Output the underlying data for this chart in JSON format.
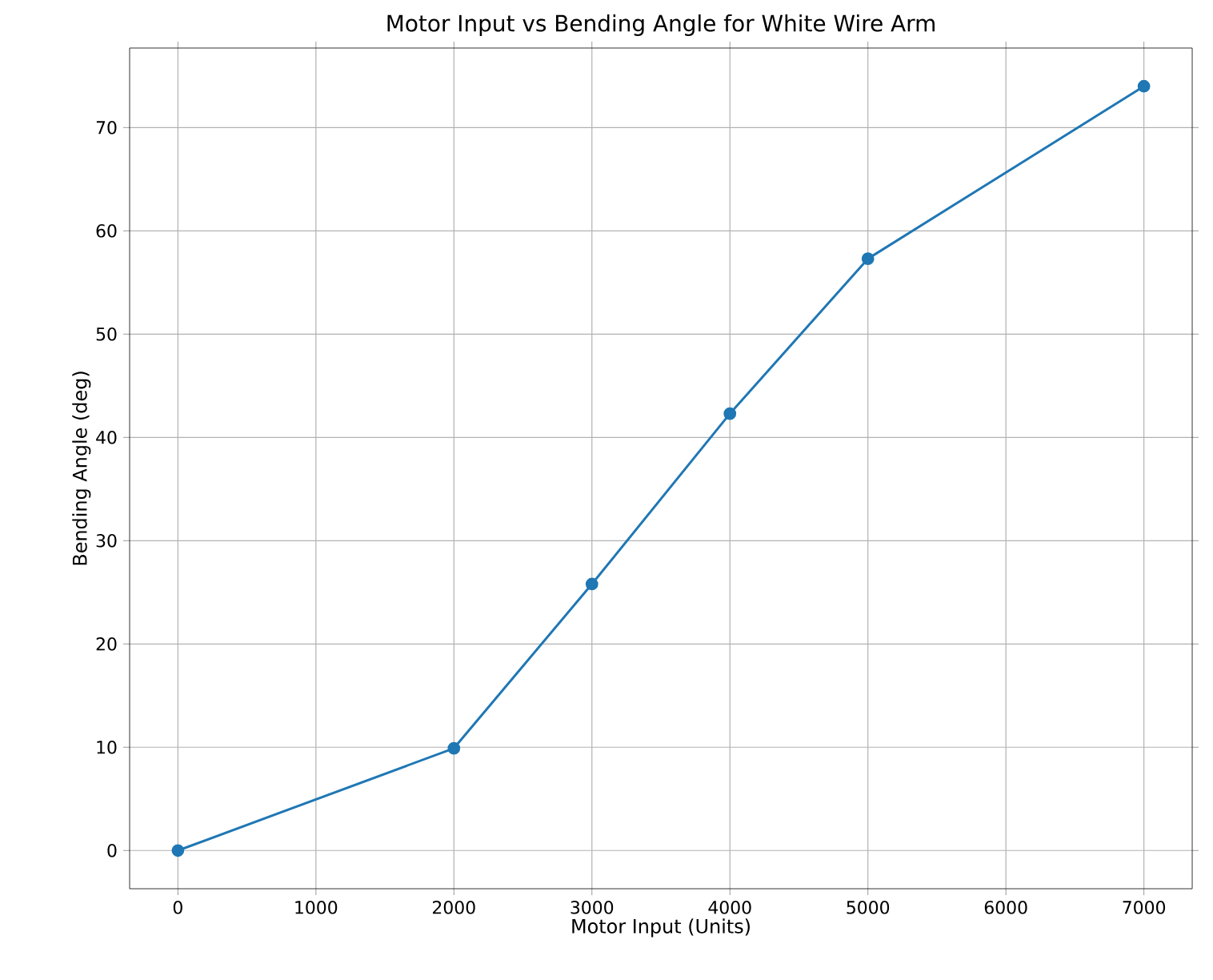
{
  "chart_data": {
    "type": "line",
    "title": "Motor Input vs Bending Angle for White Wire Arm",
    "xlabel": "Motor Input (Units)",
    "ylabel": "Bending Angle (deg)",
    "x": [
      0,
      2000,
      3000,
      4000,
      5000,
      7000
    ],
    "series": [
      {
        "color": "#1f77b4",
        "values": [
          0,
          9.9,
          25.8,
          42.3,
          57.3,
          74
        ]
      }
    ],
    "xlim": [
      -350,
      7350
    ],
    "ylim": [
      -3.7,
      77.7
    ],
    "xticks": [
      0,
      1000,
      2000,
      3000,
      4000,
      5000,
      6000,
      7000
    ],
    "yticks": [
      0,
      10,
      20,
      30,
      40,
      50,
      60,
      70
    ],
    "grid": true,
    "marker": "circle",
    "line_style": "solid"
  }
}
